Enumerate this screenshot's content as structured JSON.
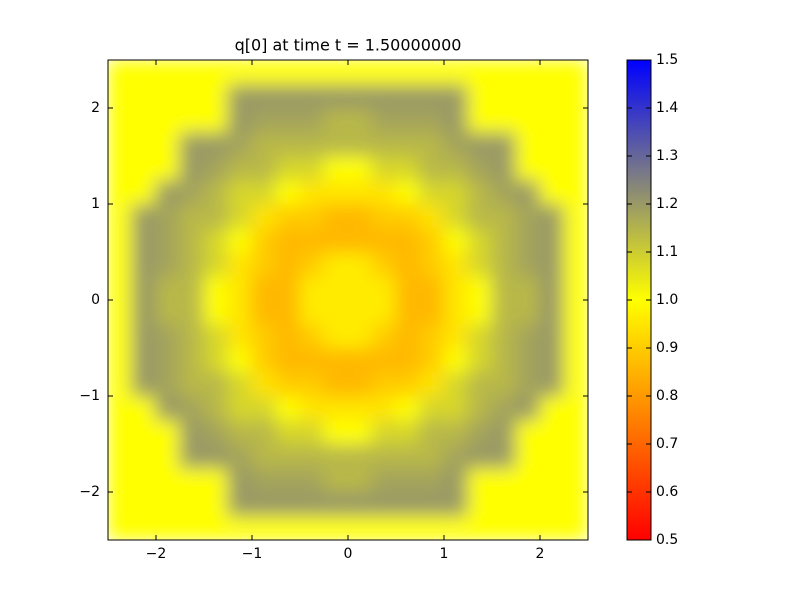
{
  "chart_data": {
    "type": "heatmap",
    "title": "q[0] at time t =     1.50000000",
    "x": [
      -2.375,
      -2.125,
      -1.875,
      -1.625,
      -1.375,
      -1.125,
      -0.875,
      -0.625,
      -0.375,
      -0.125,
      0.125,
      0.375,
      0.625,
      0.875,
      1.125,
      1.375,
      1.625,
      1.875,
      2.125,
      2.375
    ],
    "y": [
      -2.375,
      -2.125,
      -1.875,
      -1.625,
      -1.375,
      -1.125,
      -0.875,
      -0.625,
      -0.375,
      -0.125,
      0.125,
      0.375,
      0.625,
      0.875,
      1.125,
      1.375,
      1.625,
      1.875,
      2.125,
      2.375
    ],
    "z": [
      [
        1,
        1,
        1,
        1,
        1,
        1,
        1,
        1,
        1,
        1,
        1,
        1,
        1,
        1,
        1,
        1,
        1,
        1,
        1,
        1
      ],
      [
        1,
        1,
        1,
        1,
        1,
        1.2,
        1.2,
        1.2,
        1.2,
        1.2,
        1.2,
        1.2,
        1.2,
        1.2,
        1.2,
        1,
        1,
        1,
        1,
        1
      ],
      [
        1,
        1,
        1,
        1,
        1,
        1.2,
        1.18,
        1.18,
        1.18,
        1.14,
        1.14,
        1.18,
        1.18,
        1.18,
        1.2,
        1,
        1,
        1,
        1,
        1
      ],
      [
        1,
        1,
        1,
        1.2,
        1.2,
        1.18,
        1.14,
        1.14,
        1.14,
        1.14,
        1.14,
        1.14,
        1.14,
        1.14,
        1.18,
        1.2,
        1.2,
        1,
        1,
        1
      ],
      [
        1,
        1,
        1,
        1.2,
        1.18,
        1.14,
        1.14,
        1.08,
        1.08,
        1,
        1,
        1.08,
        1.08,
        1.14,
        1.14,
        1.18,
        1.2,
        1,
        1,
        1
      ],
      [
        1,
        1,
        1.2,
        1.18,
        1.14,
        1.08,
        1.08,
        1,
        0.95,
        0.95,
        0.95,
        0.95,
        1,
        1.08,
        1.08,
        1.14,
        1.18,
        1.2,
        1,
        1
      ],
      [
        1,
        1.2,
        1.18,
        1.14,
        1.14,
        1.08,
        0.95,
        0.9,
        0.9,
        0.86,
        0.86,
        0.9,
        0.9,
        0.95,
        1.08,
        1.14,
        1.14,
        1.18,
        1.2,
        1
      ],
      [
        1,
        1.2,
        1.18,
        1.14,
        1.08,
        1,
        0.9,
        0.86,
        0.86,
        0.86,
        0.86,
        0.86,
        0.86,
        0.9,
        1,
        1.08,
        1.14,
        1.18,
        1.2,
        1
      ],
      [
        1,
        1.2,
        1.18,
        1.14,
        1.08,
        0.95,
        0.9,
        0.86,
        0.9,
        0.96,
        0.96,
        0.9,
        0.86,
        0.9,
        0.95,
        1.08,
        1.14,
        1.18,
        1.2,
        1
      ],
      [
        1,
        1.2,
        1.14,
        1.14,
        1,
        0.95,
        0.86,
        0.86,
        0.96,
        0.96,
        0.96,
        0.96,
        0.86,
        0.86,
        0.95,
        1,
        1.14,
        1.14,
        1.2,
        1
      ],
      [
        1,
        1.2,
        1.14,
        1.14,
        1,
        0.95,
        0.86,
        0.86,
        0.96,
        0.96,
        0.96,
        0.96,
        0.86,
        0.86,
        0.95,
        1,
        1.14,
        1.14,
        1.2,
        1
      ],
      [
        1,
        1.2,
        1.18,
        1.14,
        1.08,
        0.95,
        0.9,
        0.86,
        0.9,
        0.96,
        0.96,
        0.9,
        0.86,
        0.9,
        0.95,
        1.08,
        1.14,
        1.18,
        1.2,
        1
      ],
      [
        1,
        1.2,
        1.18,
        1.14,
        1.08,
        1,
        0.9,
        0.86,
        0.86,
        0.86,
        0.86,
        0.86,
        0.86,
        0.9,
        1,
        1.08,
        1.14,
        1.18,
        1.2,
        1
      ],
      [
        1,
        1.2,
        1.18,
        1.14,
        1.14,
        1.08,
        0.95,
        0.9,
        0.9,
        0.86,
        0.86,
        0.9,
        0.9,
        0.95,
        1.08,
        1.14,
        1.14,
        1.18,
        1.2,
        1
      ],
      [
        1,
        1,
        1.2,
        1.18,
        1.14,
        1.08,
        1.08,
        1,
        0.95,
        0.95,
        0.95,
        0.95,
        1,
        1.08,
        1.08,
        1.14,
        1.18,
        1.2,
        1,
        1
      ],
      [
        1,
        1,
        1,
        1.2,
        1.18,
        1.14,
        1.14,
        1.08,
        1.08,
        1,
        1,
        1.08,
        1.08,
        1.14,
        1.14,
        1.18,
        1.2,
        1,
        1,
        1
      ],
      [
        1,
        1,
        1,
        1.2,
        1.2,
        1.18,
        1.14,
        1.14,
        1.14,
        1.14,
        1.14,
        1.14,
        1.14,
        1.14,
        1.18,
        1.2,
        1.2,
        1,
        1,
        1
      ],
      [
        1,
        1,
        1,
        1,
        1,
        1.2,
        1.18,
        1.18,
        1.18,
        1.14,
        1.14,
        1.18,
        1.18,
        1.18,
        1.2,
        1,
        1,
        1,
        1,
        1
      ],
      [
        1,
        1,
        1,
        1,
        1,
        1.2,
        1.2,
        1.2,
        1.2,
        1.2,
        1.2,
        1.2,
        1.2,
        1.2,
        1.2,
        1,
        1,
        1,
        1,
        1
      ],
      [
        1,
        1,
        1,
        1,
        1,
        1,
        1,
        1,
        1,
        1,
        1,
        1,
        1,
        1,
        1,
        1,
        1,
        1,
        1,
        1
      ]
    ],
    "xlim": [
      -2.5,
      2.5
    ],
    "ylim": [
      -2.5,
      2.5
    ],
    "xticks": [
      {
        "value": -2,
        "label": "−2"
      },
      {
        "value": -1,
        "label": "−1"
      },
      0,
      1,
      2
    ],
    "yticks": [
      {
        "value": -2,
        "label": "−2"
      },
      {
        "value": -1,
        "label": "−1"
      },
      0,
      1,
      2
    ],
    "clim": [
      0.5,
      1.5
    ],
    "colorbar_ticks": [
      0.5,
      0.6,
      0.7,
      0.8,
      0.9,
      {
        "value": 1,
        "label": "1.0"
      },
      1.1,
      1.2,
      1.3,
      1.4,
      1.5
    ],
    "colormap": [
      {
        "value": 0.5,
        "color": "#ff0000"
      },
      {
        "value": 1,
        "color": "#ffff00"
      },
      {
        "value": 1.25,
        "color": "#808080"
      },
      {
        "value": 1.5,
        "color": "#0000ff"
      }
    ]
  }
}
